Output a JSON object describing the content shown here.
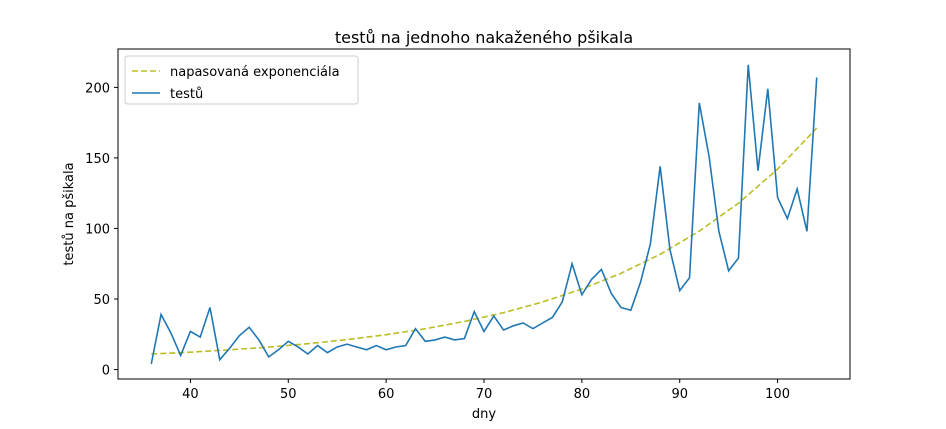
{
  "chart_data": {
    "type": "line",
    "title": "testů na jednoho nakaženého pšikala",
    "xlabel": "dny",
    "ylabel": "testů na pšikala",
    "xlim": [
      32.6,
      107.4
    ],
    "xticks": [
      40,
      50,
      60,
      70,
      80,
      90,
      100
    ],
    "ylim": [
      -6.7,
      227.2
    ],
    "yticks": [
      0,
      50,
      100,
      150,
      200
    ],
    "legend": "upper left",
    "series": [
      {
        "name": "napasovaná exponenciála",
        "color": "#bcbd22",
        "dashed": true,
        "x": [
          36,
          40,
          44,
          48,
          52,
          56,
          60,
          64,
          68,
          72,
          76,
          80,
          84,
          88,
          92,
          96,
          100,
          104
        ],
        "values": [
          11.0,
          12.3,
          14.0,
          15.9,
          18.3,
          21.2,
          24.7,
          28.9,
          34.1,
          40.3,
          47.9,
          57.1,
          68.2,
          81.7,
          98.1,
          117.9,
          142.0,
          171.2
        ]
      },
      {
        "name": "testů",
        "color": "#1f77b4",
        "dashed": false,
        "x": [
          36,
          37,
          38,
          39,
          40,
          41,
          42,
          43,
          44,
          45,
          46,
          47,
          48,
          49,
          50,
          51,
          52,
          53,
          54,
          55,
          56,
          57,
          58,
          59,
          60,
          61,
          62,
          63,
          64,
          65,
          66,
          67,
          68,
          69,
          70,
          71,
          72,
          73,
          74,
          75,
          76,
          77,
          78,
          79,
          80,
          81,
          82,
          83,
          84,
          85,
          86,
          87,
          88,
          89,
          90,
          91,
          92,
          93,
          94,
          95,
          96,
          97,
          98,
          99,
          100,
          101,
          102,
          103,
          104
        ],
        "values": [
          4,
          39,
          26,
          10,
          27,
          23,
          44,
          7,
          15,
          24,
          30,
          21,
          9,
          14,
          20,
          16,
          11,
          17,
          12,
          16,
          18,
          16,
          14,
          17,
          14,
          16,
          17,
          29,
          20,
          21,
          23,
          21,
          22,
          41,
          27,
          38,
          28,
          31,
          33,
          29,
          33,
          37,
          48,
          75,
          53,
          64,
          71,
          54,
          44,
          42,
          62,
          89,
          144,
          85,
          56,
          65,
          189,
          151,
          98,
          70,
          79,
          216,
          141,
          199,
          122,
          107,
          128,
          98,
          207
        ]
      }
    ]
  }
}
